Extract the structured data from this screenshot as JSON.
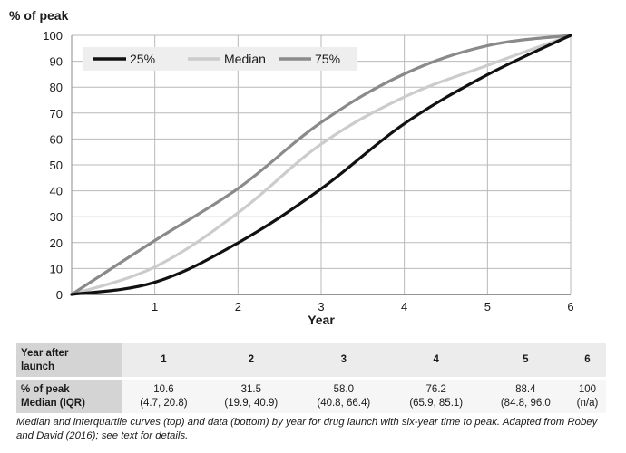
{
  "chart_data": {
    "type": "line",
    "ylabel": "% of peak",
    "xlabel": "Year",
    "x": [
      0,
      1,
      2,
      3,
      4,
      5,
      6
    ],
    "xlim": [
      0,
      6
    ],
    "ylim": [
      0,
      100
    ],
    "xticks": [
      1,
      2,
      3,
      4,
      5,
      6
    ],
    "yticks": [
      0,
      10,
      20,
      30,
      40,
      50,
      60,
      70,
      80,
      90,
      100
    ],
    "grid": true,
    "legend_position": "top-left",
    "series": [
      {
        "name": "25%",
        "color": "#111111",
        "values": [
          0,
          4.7,
          19.9,
          40.8,
          65.9,
          84.8,
          100
        ]
      },
      {
        "name": "Median",
        "color": "#cccccc",
        "values": [
          0,
          10.6,
          31.5,
          58.0,
          76.2,
          88.4,
          100
        ]
      },
      {
        "name": "75%",
        "color": "#8a8a8a",
        "values": [
          0,
          20.8,
          40.9,
          66.4,
          85.1,
          96.0,
          100
        ]
      }
    ]
  },
  "table": {
    "row1_header": [
      "Year after",
      "launch"
    ],
    "years": [
      "1",
      "2",
      "3",
      "4",
      "5",
      "6"
    ],
    "row2_header": [
      "% of peak",
      "Median (IQR)"
    ],
    "medians": [
      "10.6",
      "31.5",
      "58.0",
      "76.2",
      "88.4",
      "100"
    ],
    "iqr": [
      "(4.7, 20.8)",
      "(19.9, 40.9)",
      "(40.8, 66.4)",
      "(65.9, 85.1)",
      "(84.8, 96.0",
      "(n/a)"
    ]
  },
  "caption": "Median and interquartile curves (top) and data (bottom) by year for drug launch with six-year time to peak. Adapted from Robey and David (2016); see text for details."
}
